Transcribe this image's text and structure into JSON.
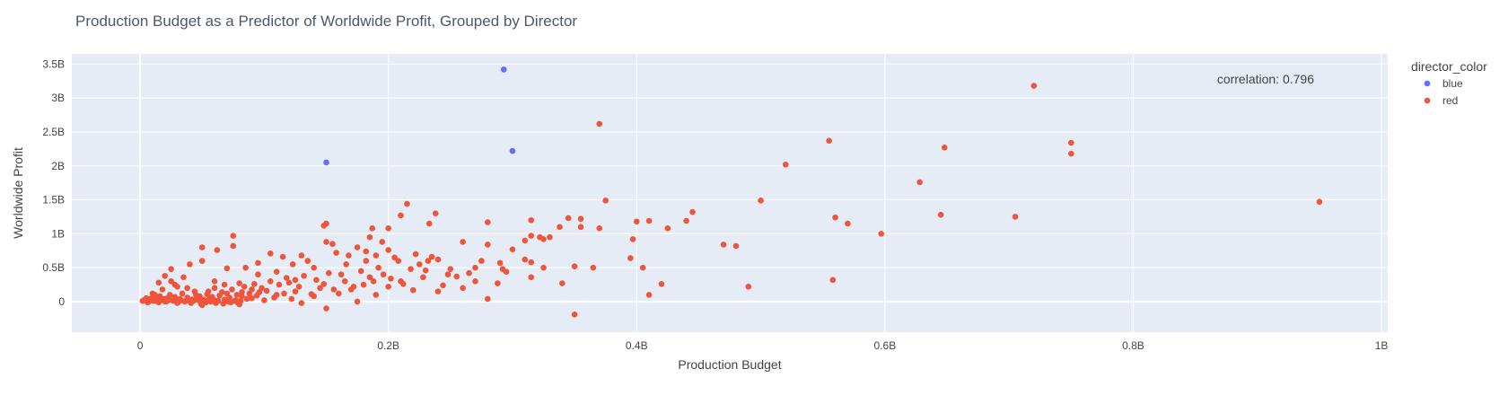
{
  "chart_data": {
    "type": "scatter",
    "title": "Production Budget as a Predictor of Worldwide Profit, Grouped by Director",
    "xlabel": "Production Budget",
    "ylabel": "Worldwide Profit",
    "xlim": [
      -0.055,
      1.005
    ],
    "ylim": [
      -0.45,
      3.65
    ],
    "x_unit": "B",
    "y_unit": "B",
    "x_ticks": [
      0,
      0.2,
      0.4,
      0.6,
      0.8,
      1.0
    ],
    "x_tick_labels": [
      "0",
      "0.2B",
      "0.4B",
      "0.6B",
      "0.8B",
      "1B"
    ],
    "y_ticks": [
      0,
      0.5,
      1.0,
      1.5,
      2.0,
      2.5,
      3.0,
      3.5
    ],
    "y_tick_labels": [
      "0",
      "0.5B",
      "1B",
      "1.5B",
      "2B",
      "2.5B",
      "3B",
      "3.5B"
    ],
    "grid": true,
    "legend_position": "right",
    "legend_title": "director_color",
    "annotation": "correlation: 0.796",
    "colors": {
      "blue": "#636efa",
      "red": "#ef553b",
      "plot_bg": "#e5ecf6"
    },
    "series": [
      {
        "name": "blue",
        "color": "#636efa",
        "points": [
          [
            0.293,
            3.42
          ],
          [
            0.3,
            2.22
          ],
          [
            0.15,
            2.05
          ]
        ]
      },
      {
        "name": "red",
        "color": "#ef553b",
        "points": [
          [
            0.72,
            3.18
          ],
          [
            0.37,
            2.62
          ],
          [
            0.555,
            2.37
          ],
          [
            0.75,
            2.34
          ],
          [
            0.648,
            2.27
          ],
          [
            0.75,
            2.18
          ],
          [
            0.52,
            2.02
          ],
          [
            0.628,
            1.76
          ],
          [
            0.375,
            1.49
          ],
          [
            0.5,
            1.49
          ],
          [
            0.95,
            1.47
          ],
          [
            0.215,
            1.44
          ],
          [
            0.445,
            1.32
          ],
          [
            0.238,
            1.3
          ],
          [
            0.645,
            1.28
          ],
          [
            0.21,
            1.27
          ],
          [
            0.56,
            1.24
          ],
          [
            0.705,
            1.25
          ],
          [
            0.345,
            1.23
          ],
          [
            0.355,
            1.22
          ],
          [
            0.41,
            1.19
          ],
          [
            0.44,
            1.19
          ],
          [
            0.4,
            1.18
          ],
          [
            0.315,
            1.2
          ],
          [
            0.28,
            1.17
          ],
          [
            0.233,
            1.15
          ],
          [
            0.57,
            1.15
          ],
          [
            0.15,
            1.15
          ],
          [
            0.148,
            1.12
          ],
          [
            0.355,
            1.1
          ],
          [
            0.338,
            1.1
          ],
          [
            0.2,
            1.08
          ],
          [
            0.187,
            1.08
          ],
          [
            0.37,
            1.08
          ],
          [
            0.425,
            1.08
          ],
          [
            0.597,
            1.0
          ],
          [
            0.315,
            0.97
          ],
          [
            0.322,
            0.95
          ],
          [
            0.33,
            0.95
          ],
          [
            0.185,
            0.95
          ],
          [
            0.075,
            0.97
          ],
          [
            0.397,
            0.92
          ],
          [
            0.31,
            0.9
          ],
          [
            0.26,
            0.88
          ],
          [
            0.325,
            0.92
          ],
          [
            0.195,
            0.88
          ],
          [
            0.15,
            0.88
          ],
          [
            0.155,
            0.85
          ],
          [
            0.28,
            0.84
          ],
          [
            0.47,
            0.84
          ],
          [
            0.48,
            0.82
          ],
          [
            0.05,
            0.8
          ],
          [
            0.075,
            0.82
          ],
          [
            0.062,
            0.76
          ],
          [
            0.175,
            0.8
          ],
          [
            0.2,
            0.76
          ],
          [
            0.182,
            0.74
          ],
          [
            0.158,
            0.72
          ],
          [
            0.222,
            0.7
          ],
          [
            0.3,
            0.77
          ],
          [
            0.235,
            0.66
          ],
          [
            0.105,
            0.71
          ],
          [
            0.115,
            0.66
          ],
          [
            0.13,
            0.68
          ],
          [
            0.168,
            0.68
          ],
          [
            0.19,
            0.68
          ],
          [
            0.205,
            0.65
          ],
          [
            0.24,
            0.62
          ],
          [
            0.275,
            0.6
          ],
          [
            0.31,
            0.62
          ],
          [
            0.395,
            0.64
          ],
          [
            0.405,
            0.5
          ],
          [
            0.365,
            0.5
          ],
          [
            0.35,
            0.52
          ],
          [
            0.315,
            0.58
          ],
          [
            0.325,
            0.5
          ],
          [
            0.29,
            0.57
          ],
          [
            0.292,
            0.48
          ],
          [
            0.25,
            0.48
          ],
          [
            0.255,
            0.37
          ],
          [
            0.265,
            0.42
          ],
          [
            0.315,
            0.36
          ],
          [
            0.34,
            0.27
          ],
          [
            0.41,
            0.1
          ],
          [
            0.42,
            0.26
          ],
          [
            0.49,
            0.22
          ],
          [
            0.558,
            0.32
          ],
          [
            0.28,
            0.04
          ],
          [
            0.35,
            -0.19
          ],
          [
            0.295,
            0.44
          ],
          [
            0.288,
            0.27
          ],
          [
            0.225,
            0.55
          ],
          [
            0.23,
            0.46
          ],
          [
            0.185,
            0.36
          ],
          [
            0.165,
            0.3
          ],
          [
            0.14,
            0.5
          ],
          [
            0.135,
            0.6
          ],
          [
            0.123,
            0.55
          ],
          [
            0.095,
            0.57
          ],
          [
            0.085,
            0.5
          ],
          [
            0.07,
            0.49
          ],
          [
            0.05,
            0.6
          ],
          [
            0.04,
            0.55
          ],
          [
            0.025,
            0.48
          ],
          [
            0.02,
            0.38
          ],
          [
            0.015,
            0.28
          ],
          [
            0.035,
            0.36
          ],
          [
            0.06,
            0.3
          ],
          [
            0.08,
            0.27
          ],
          [
            0.105,
            0.3
          ],
          [
            0.12,
            0.28
          ],
          [
            0.145,
            0.2
          ],
          [
            0.17,
            0.18
          ],
          [
            0.2,
            0.22
          ],
          [
            0.22,
            0.17
          ],
          [
            0.24,
            0.15
          ],
          [
            0.19,
            0.1
          ],
          [
            0.175,
            0.0
          ],
          [
            0.15,
            -0.1
          ],
          [
            0.13,
            -0.02
          ],
          [
            0.1,
            0.02
          ],
          [
            0.09,
            0.18
          ],
          [
            0.07,
            0.12
          ],
          [
            0.06,
            0.2
          ],
          [
            0.045,
            0.1
          ],
          [
            0.03,
            0.22
          ],
          [
            0.01,
            0.12
          ],
          [
            0.005,
            0.05
          ],
          [
            0.012,
            0.02
          ],
          [
            0.02,
            0.0
          ],
          [
            0.03,
            -0.02
          ],
          [
            0.04,
            0.01
          ],
          [
            0.05,
            -0.05
          ],
          [
            0.06,
            0.02
          ],
          [
            0.08,
            -0.04
          ],
          [
            0.09,
            0.05
          ],
          [
            0.11,
            0.1
          ],
          [
            0.125,
            0.15
          ],
          [
            0.14,
            0.08
          ],
          [
            0.16,
            0.12
          ],
          [
            0.18,
            0.25
          ],
          [
            0.21,
            0.3
          ],
          [
            0.26,
            0.2
          ],
          [
            0.27,
            0.3
          ],
          [
            0.002,
            0.01
          ],
          [
            0.004,
            0.03
          ],
          [
            0.006,
            -0.01
          ],
          [
            0.008,
            0.04
          ],
          [
            0.01,
            0.06
          ],
          [
            0.014,
            0.0
          ],
          [
            0.016,
            0.08
          ],
          [
            0.018,
            0.03
          ],
          [
            0.022,
            0.05
          ],
          [
            0.024,
            0.1
          ],
          [
            0.026,
            0.02
          ],
          [
            0.028,
            0.07
          ],
          [
            0.032,
            0.04
          ],
          [
            0.034,
            0.12
          ],
          [
            0.036,
            0.0
          ],
          [
            0.038,
            0.06
          ],
          [
            0.042,
            0.03
          ],
          [
            0.044,
            0.15
          ],
          [
            0.046,
            0.05
          ],
          [
            0.048,
            0.08
          ],
          [
            0.052,
            0.02
          ],
          [
            0.054,
            0.11
          ],
          [
            0.056,
            0.04
          ],
          [
            0.058,
            0.07
          ],
          [
            0.064,
            0.09
          ],
          [
            0.066,
            0.14
          ],
          [
            0.068,
            0.03
          ],
          [
            0.072,
            0.06
          ],
          [
            0.074,
            0.18
          ],
          [
            0.076,
            0.01
          ],
          [
            0.078,
            0.1
          ],
          [
            0.082,
            0.08
          ],
          [
            0.084,
            0.22
          ],
          [
            0.086,
            0.04
          ],
          [
            0.088,
            0.12
          ],
          [
            0.092,
            0.26
          ],
          [
            0.094,
            0.09
          ],
          [
            0.096,
            0.14
          ],
          [
            0.098,
            0.2
          ],
          [
            0.102,
            0.16
          ],
          [
            0.108,
            0.06
          ],
          [
            0.112,
            0.25
          ],
          [
            0.116,
            0.12
          ],
          [
            0.118,
            0.35
          ],
          [
            0.122,
            0.04
          ],
          [
            0.128,
            0.22
          ],
          [
            0.132,
            0.38
          ],
          [
            0.138,
            0.11
          ],
          [
            0.142,
            0.32
          ],
          [
            0.148,
            0.26
          ],
          [
            0.152,
            0.42
          ],
          [
            0.156,
            0.18
          ],
          [
            0.162,
            0.4
          ],
          [
            0.166,
            0.55
          ],
          [
            0.172,
            0.22
          ],
          [
            0.178,
            0.45
          ],
          [
            0.182,
            0.6
          ],
          [
            0.188,
            0.3
          ],
          [
            0.192,
            0.5
          ],
          [
            0.196,
            0.4
          ],
          [
            0.202,
            0.34
          ],
          [
            0.208,
            0.6
          ],
          [
            0.212,
            0.26
          ],
          [
            0.218,
            0.48
          ],
          [
            0.228,
            0.36
          ],
          [
            0.232,
            0.6
          ],
          [
            0.244,
            0.24
          ],
          [
            0.248,
            0.4
          ],
          [
            0.27,
            0.5
          ],
          [
            0.018,
            0.18
          ],
          [
            0.028,
            0.25
          ],
          [
            0.012,
            0.1
          ],
          [
            0.025,
            0.3
          ],
          [
            0.038,
            0.2
          ],
          [
            0.055,
            0.15
          ],
          [
            0.068,
            0.25
          ],
          [
            0.082,
            0.14
          ],
          [
            0.095,
            0.4
          ],
          [
            0.11,
            0.44
          ],
          [
            0.125,
            0.32
          ],
          [
            0.003,
            0.02
          ],
          [
            0.007,
            0.0
          ],
          [
            0.009,
            0.02
          ],
          [
            0.011,
            0.01
          ],
          [
            0.013,
            0.03
          ],
          [
            0.015,
            -0.01
          ],
          [
            0.017,
            0.02
          ],
          [
            0.019,
            0.04
          ],
          [
            0.021,
            0.0
          ],
          [
            0.023,
            0.02
          ],
          [
            0.027,
            0.01
          ],
          [
            0.029,
            0.03
          ],
          [
            0.031,
            0.0
          ],
          [
            0.033,
            0.02
          ],
          [
            0.037,
            0.01
          ],
          [
            0.039,
            0.04
          ],
          [
            0.041,
            -0.02
          ],
          [
            0.043,
            0.01
          ],
          [
            0.047,
            0.02
          ],
          [
            0.049,
            -0.03
          ],
          [
            0.051,
            0.03
          ],
          [
            0.053,
            -0.01
          ],
          [
            0.057,
            0.0
          ],
          [
            0.059,
            0.03
          ],
          [
            0.061,
            -0.02
          ],
          [
            0.063,
            0.01
          ],
          [
            0.067,
            -0.03
          ],
          [
            0.071,
            0.0
          ],
          [
            0.073,
            -0.01
          ],
          [
            0.077,
            0.02
          ],
          [
            0.079,
            -0.02
          ],
          [
            0.081,
            0.01
          ]
        ]
      }
    ]
  }
}
